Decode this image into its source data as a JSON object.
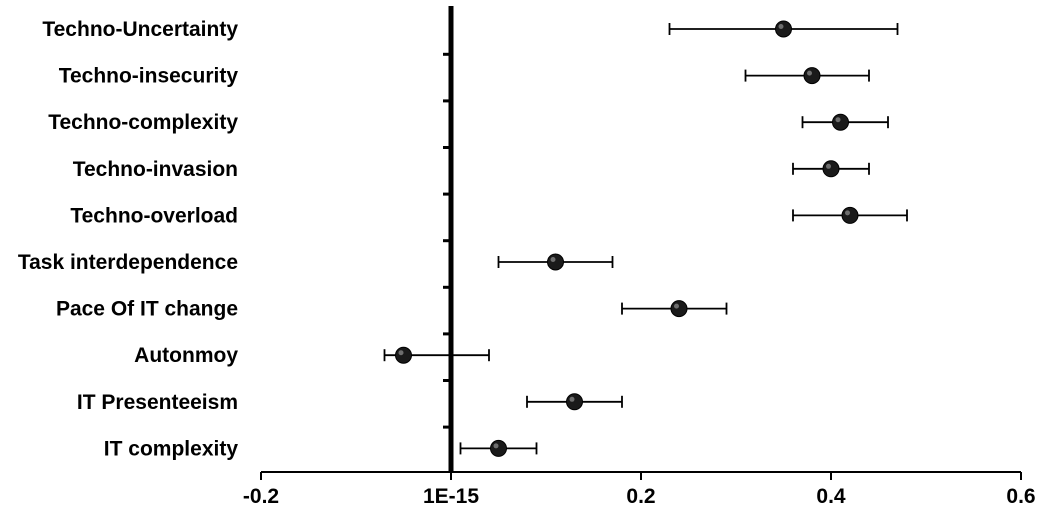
{
  "chart_data": {
    "type": "scatter",
    "subtype": "forest-plot",
    "title": "",
    "xlabel": "",
    "ylabel": "",
    "xlim": [
      -0.2,
      0.6
    ],
    "x_ticks": [
      -0.2,
      0,
      0.2,
      0.4,
      0.6
    ],
    "x_tick_labels": [
      "-0.2",
      "1E-15",
      "0.2",
      "0.4",
      "0.6"
    ],
    "grid": false,
    "legend": "none",
    "marker_color": "#1a1a1a",
    "categories": [
      "Techno-Uncertainty",
      "Techno-insecurity",
      "Techno-complexity",
      "Techno-invasion",
      "Techno-overload",
      "Task interdependence",
      "Pace Of IT change",
      "Autonmoy",
      "IT Presenteeism",
      "IT complexity"
    ],
    "estimates": [
      0.35,
      0.38,
      0.41,
      0.4,
      0.42,
      0.11,
      0.24,
      -0.05,
      0.13,
      0.05
    ],
    "ci_lower": [
      0.23,
      0.31,
      0.37,
      0.36,
      0.36,
      0.05,
      0.18,
      -0.07,
      0.08,
      0.01
    ],
    "ci_upper": [
      0.47,
      0.44,
      0.46,
      0.44,
      0.48,
      0.17,
      0.29,
      0.04,
      0.18,
      0.09
    ]
  }
}
